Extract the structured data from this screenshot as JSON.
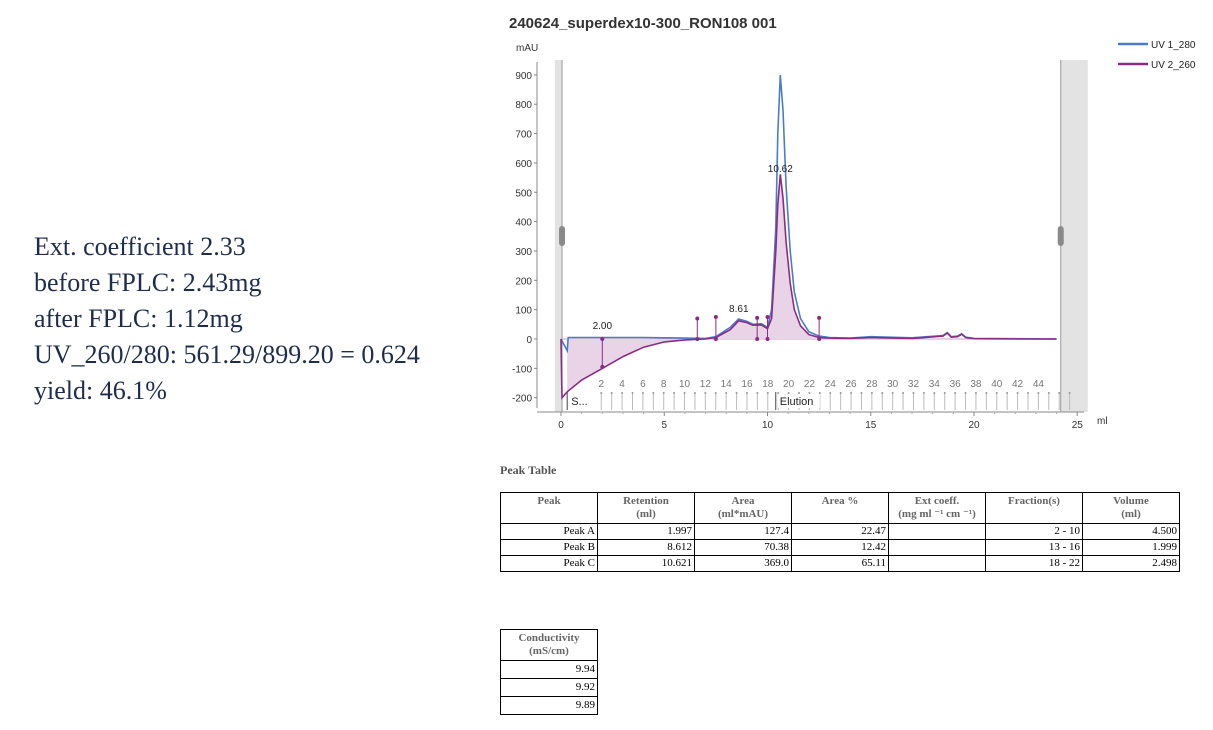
{
  "notes": {
    "line1": "Ext. coefficient  2.33",
    "line2": "before FPLC: 2.43mg",
    "line3": "after FPLC: 1.12mg",
    "line4": "UV_260/280: 561.29/899.20 = 0.624",
    "line5": "yield: 46.1%"
  },
  "chart_data": {
    "type": "line",
    "title": "240624_superdex10-300_RON108 001",
    "ylabel": "mAU",
    "xlabel": "ml",
    "xlim": [
      -0.3,
      24.2
    ],
    "ylim": [
      -220,
      960
    ],
    "yticks": [
      -200,
      -100,
      0,
      100,
      200,
      300,
      400,
      500,
      600,
      700,
      800,
      900
    ],
    "xticks": [
      0,
      5,
      10,
      15,
      20,
      25
    ],
    "legend_position": "top-right",
    "series": [
      {
        "name": "UV 1_280",
        "color": "#4a7cc9",
        "x": [
          0,
          0.3,
          0.35,
          2,
          4,
          6,
          7,
          7.5,
          8.2,
          8.6,
          9.0,
          9.3,
          9.7,
          10.0,
          10.2,
          10.4,
          10.5,
          10.62,
          10.75,
          10.9,
          11.1,
          11.3,
          11.6,
          12.0,
          12.5,
          13,
          14,
          15,
          17,
          18.5,
          18.7,
          18.9,
          19.2,
          19.4,
          19.6,
          20,
          22,
          24
        ],
        "y": [
          0,
          -40,
          5,
          5,
          5,
          3,
          2,
          8,
          40,
          68,
          60,
          50,
          52,
          40,
          100,
          380,
          700,
          899.2,
          780,
          520,
          300,
          160,
          70,
          25,
          10,
          5,
          3,
          8,
          4,
          12,
          22,
          8,
          10,
          18,
          6,
          2,
          1,
          0
        ]
      },
      {
        "name": "UV 2_260",
        "color": "#8b2b84",
        "x": [
          0,
          0.05,
          0.3,
          1,
          2,
          3,
          4,
          5,
          6,
          7,
          7.5,
          8.2,
          8.6,
          9.0,
          9.3,
          9.7,
          10.0,
          10.2,
          10.4,
          10.5,
          10.62,
          10.75,
          10.9,
          11.1,
          11.3,
          11.6,
          12.0,
          12.5,
          13,
          14,
          15,
          17,
          18.5,
          18.7,
          18.9,
          19.2,
          19.4,
          19.6,
          20,
          22,
          24
        ],
        "y": [
          0,
          -200,
          -180,
          -140,
          -100,
          -60,
          -28,
          -10,
          -3,
          0,
          5,
          32,
          62,
          56,
          47,
          48,
          35,
          70,
          300,
          460,
          561.29,
          480,
          330,
          190,
          100,
          45,
          15,
          5,
          3,
          2,
          5,
          2,
          10,
          20,
          6,
          8,
          16,
          5,
          1,
          0,
          0
        ]
      }
    ],
    "peak_labels": [
      {
        "label": "2.00",
        "x": 2.0,
        "y": 20
      },
      {
        "label": "8.61",
        "x": 8.61,
        "y": 78
      },
      {
        "label": "10.62",
        "x": 10.62,
        "y": 555
      }
    ],
    "fraction_labels": [
      "2",
      "4",
      "6",
      "8",
      "10",
      "12",
      "14",
      "16",
      "18",
      "20",
      "22",
      "24",
      "26",
      "28",
      "30",
      "32",
      "34",
      "36",
      "38",
      "40",
      "42",
      "44"
    ],
    "event_labels": [
      "S...",
      "Elution"
    ]
  },
  "peak_table": {
    "title": "Peak Table",
    "headers": {
      "peak": "Peak",
      "retention": "Retention",
      "retention_unit": "(ml)",
      "area": "Area",
      "area_unit": "(ml*mAU)",
      "area_pct": "Area %",
      "ext": "Ext coeff.",
      "ext_unit": "(mg ml ⁻¹ cm ⁻¹)",
      "fraction": "Fraction(s)",
      "volume": "Volume",
      "volume_unit": "(ml)"
    },
    "rows": [
      {
        "peak": "Peak A",
        "retention": "1.997",
        "area": "127.4",
        "area_pct": "22.47",
        "ext": "",
        "fraction": "2 - 10",
        "volume": "4.500"
      },
      {
        "peak": "Peak B",
        "retention": "8.612",
        "area": "70.38",
        "area_pct": "12.42",
        "ext": "",
        "fraction": "13 - 16",
        "volume": "1.999"
      },
      {
        "peak": "Peak C",
        "retention": "10.621",
        "area": "369.0",
        "area_pct": "65.11",
        "ext": "",
        "fraction": "18 - 22",
        "volume": "2.498"
      }
    ]
  },
  "conductivity_table": {
    "header": "Conductivity",
    "unit": "(mS/cm)",
    "values": [
      "9.94",
      "9.92",
      "9.89"
    ]
  }
}
